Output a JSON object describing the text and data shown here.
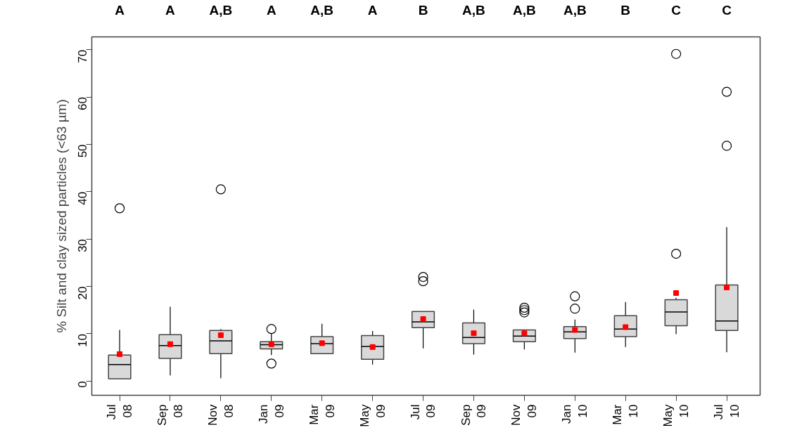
{
  "chart_data": {
    "type": "box",
    "ylabel": "% Silt and clay sized particles (<63 µm)",
    "categories": [
      "Jul 08",
      "Sep 08",
      "Nov 08",
      "Jan 09",
      "Mar 09",
      "May 09",
      "Jul 09",
      "Sep 09",
      "Nov 09",
      "Jan 10",
      "Mar 10",
      "May 10",
      "Jul 10"
    ],
    "boxes": [
      {
        "low": 0.5,
        "q1": 0.5,
        "median": 3.5,
        "q3": 5.5,
        "high": 10.8,
        "mean": 5.7,
        "outliers": [
          36.5
        ]
      },
      {
        "low": 1.2,
        "q1": 4.8,
        "median": 7.5,
        "q3": 9.8,
        "high": 15.7,
        "mean": 7.8
      },
      {
        "low": 0.6,
        "q1": 5.8,
        "median": 8.5,
        "q3": 10.7,
        "high": 11,
        "mean": 9.7,
        "outliers": [
          40.5
        ]
      },
      {
        "low": 5.5,
        "q1": 6.8,
        "median": 7.7,
        "q3": 8.3,
        "high": 10,
        "mean": 7.8,
        "outliers": [
          11,
          3.7
        ]
      },
      {
        "low": 5.8,
        "q1": 5.8,
        "median": 7.9,
        "q3": 9.4,
        "high": 12.1,
        "mean": 8.0
      },
      {
        "low": 3.5,
        "q1": 4.6,
        "median": 7.3,
        "q3": 9.6,
        "high": 10.6,
        "mean": 7.2
      },
      {
        "low": 6.9,
        "q1": 11.3,
        "median": 12.5,
        "q3": 14.7,
        "high": 14.7,
        "mean": 13.1,
        "outliers": [
          22.0,
          21.1
        ]
      },
      {
        "low": 5.6,
        "q1": 7.9,
        "median": 9.2,
        "q3": 12.3,
        "high": 15.1,
        "mean": 10.1
      },
      {
        "low": 6.7,
        "q1": 8.3,
        "median": 9.5,
        "q3": 10.8,
        "high": 10.8,
        "mean": 10.1,
        "outliers": [
          15.5,
          15.0,
          14.5
        ]
      },
      {
        "low": 6.0,
        "q1": 9.0,
        "median": 10.4,
        "q3": 11.5,
        "high": 13.0,
        "mean": 10.8,
        "outliers": [
          17.9,
          15.3
        ]
      },
      {
        "low": 7.2,
        "q1": 9.4,
        "median": 11.0,
        "q3": 13.8,
        "high": 16.7,
        "mean": 11.4
      },
      {
        "low": 9.9,
        "q1": 11.7,
        "median": 14.6,
        "q3": 17.2,
        "high": 17.6,
        "mean": 18.6,
        "outliers": [
          69.1,
          26.9
        ]
      },
      {
        "low": 6.1,
        "q1": 10.7,
        "median": 12.7,
        "q3": 20.3,
        "high": 32.5,
        "mean": 19.8,
        "outliers": [
          61.1,
          49.7
        ]
      }
    ],
    "color": "#d9d9d9",
    "ylim": [
      -3,
      72.7
    ],
    "yticks": [
      0,
      10,
      20,
      30,
      40,
      50,
      60,
      70
    ],
    "grid": false,
    "annotations": [
      "A",
      "A",
      "A,B",
      "A",
      "A,B",
      "A",
      "B",
      "A,B",
      "A,B",
      "A,B",
      "B",
      "C",
      "C"
    ]
  }
}
